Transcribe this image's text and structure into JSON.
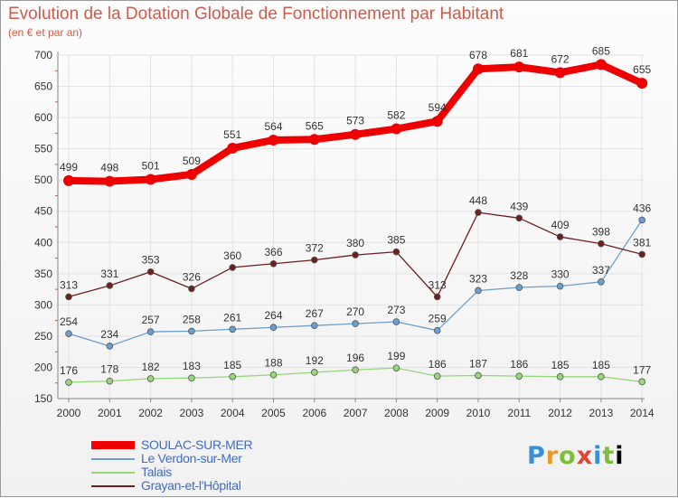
{
  "header": {
    "title": "Evolution de la Dotation Globale de Fonctionnement par Habitant",
    "subtitle": "(en € et par an)"
  },
  "logo": {
    "letters": [
      "P",
      "r",
      "o",
      "x",
      "i",
      "t",
      "i"
    ]
  },
  "chart_data": {
    "type": "line",
    "title": "Evolution de la Dotation Globale de Fonctionnement par Habitant",
    "subtitle": "(en € et par an)",
    "xlabel": "",
    "ylabel": "",
    "ylim": [
      150,
      700
    ],
    "yticks": [
      150,
      200,
      250,
      300,
      350,
      400,
      450,
      500,
      550,
      600,
      650,
      700
    ],
    "grid": true,
    "legend_position": "bottom-left",
    "x": [
      "2000",
      "2001",
      "2002",
      "2003",
      "2004",
      "2005",
      "2006",
      "2007",
      "2008",
      "2009",
      "2010",
      "2011",
      "2012",
      "2013",
      "2014"
    ],
    "series": [
      {
        "name": "SOULAC-SUR-MER",
        "color": "#ee0000",
        "emphasis": true,
        "values": [
          499,
          498,
          501,
          509,
          551,
          564,
          565,
          573,
          582,
          594,
          678,
          681,
          672,
          685,
          655
        ]
      },
      {
        "name": "Le Verdon-sur-Mer",
        "color": "#6a9fd0",
        "values": [
          254,
          234,
          257,
          258,
          261,
          264,
          267,
          270,
          273,
          259,
          323,
          328,
          330,
          337,
          436
        ]
      },
      {
        "name": "Talais",
        "color": "#98d67a",
        "values": [
          176,
          178,
          182,
          183,
          185,
          188,
          192,
          196,
          199,
          186,
          187,
          186,
          185,
          185,
          177
        ]
      },
      {
        "name": "Grayan-et-l'Hôpital",
        "color": "#6b1f1f",
        "values": [
          313,
          331,
          353,
          326,
          360,
          366,
          372,
          380,
          385,
          313,
          448,
          439,
          409,
          398,
          381
        ]
      }
    ]
  }
}
